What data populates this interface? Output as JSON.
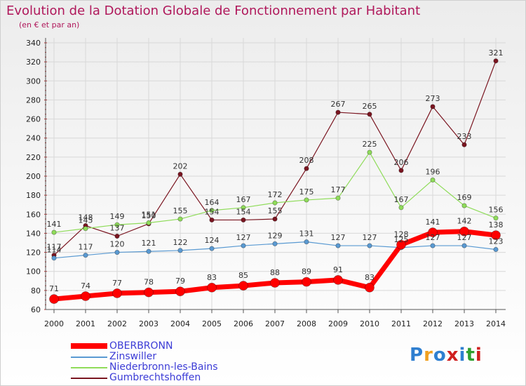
{
  "title": "Evolution de la Dotation Globale de Fonctionnement par Habitant",
  "subtitle": "(en € et par an)",
  "logo": {
    "text": "Proxiti",
    "colors": [
      "#2f7fd0",
      "#f0a020",
      "#2f7fd0",
      "#d02020",
      "#2f7fd0",
      "#2fa02f",
      "#d02020"
    ]
  },
  "chart_data": {
    "type": "line",
    "categories": [
      "2000",
      "2001",
      "2002",
      "2003",
      "2004",
      "2005",
      "2006",
      "2007",
      "2008",
      "2009",
      "2010",
      "2011",
      "2012",
      "2013",
      "2014"
    ],
    "ylim": [
      60,
      340
    ],
    "yticks": [
      60,
      80,
      100,
      120,
      140,
      160,
      180,
      200,
      220,
      240,
      260,
      280,
      300,
      320,
      340
    ],
    "grid": true,
    "series": [
      {
        "name": "Gumbrechtshoffen",
        "color": "#7a1520",
        "width": 1.2,
        "marker": 3.2,
        "values": [
          117,
          148,
          137,
          150,
          202,
          154,
          154,
          155,
          208,
          267,
          265,
          206,
          273,
          233,
          321
        ],
        "labels": [
          "117",
          "148",
          "137",
          "150",
          "202",
          "154",
          "154",
          "155",
          "208",
          "267",
          "265",
          "206",
          "273",
          "233",
          "321"
        ]
      },
      {
        "name": "Niederbronn-les-Bains",
        "color": "#8fdc5a",
        "width": 1.2,
        "marker": 3.2,
        "values": [
          141,
          145,
          149,
          151,
          155,
          164,
          167,
          172,
          175,
          177,
          225,
          167,
          196,
          169,
          156
        ],
        "labels": [
          "141",
          "145",
          "149",
          "151",
          "155",
          "164",
          "167",
          "172",
          "175",
          "177",
          "225",
          "167",
          "196",
          "169",
          "156"
        ]
      },
      {
        "name": "Zinswiller",
        "color": "#5a9ad2",
        "width": 1.2,
        "marker": 3.2,
        "values": [
          114,
          117,
          120,
          121,
          122,
          124,
          127,
          129,
          131,
          127,
          127,
          125,
          127,
          127,
          123
        ],
        "labels": [
          "114",
          "117",
          "120",
          "121",
          "122",
          "124",
          "127",
          "129",
          "131",
          "127",
          "127",
          "125",
          "127",
          "127",
          "123"
        ]
      },
      {
        "name": "OBERBRONN",
        "color": "#ff0000",
        "width": 7,
        "marker": 6.5,
        "values": [
          71,
          74,
          77,
          78,
          79,
          83,
          85,
          88,
          89,
          91,
          83,
          128,
          141,
          142,
          138
        ],
        "labels": [
          "71",
          "74",
          "77",
          "78",
          "79",
          "83",
          "85",
          "88",
          "89",
          "91",
          "83",
          "128",
          "141",
          "142",
          "138"
        ]
      }
    ],
    "legend": [
      "OBERBRONN",
      "Zinswiller",
      "Niederbronn-les-Bains",
      "Gumbrechtshoffen"
    ]
  }
}
